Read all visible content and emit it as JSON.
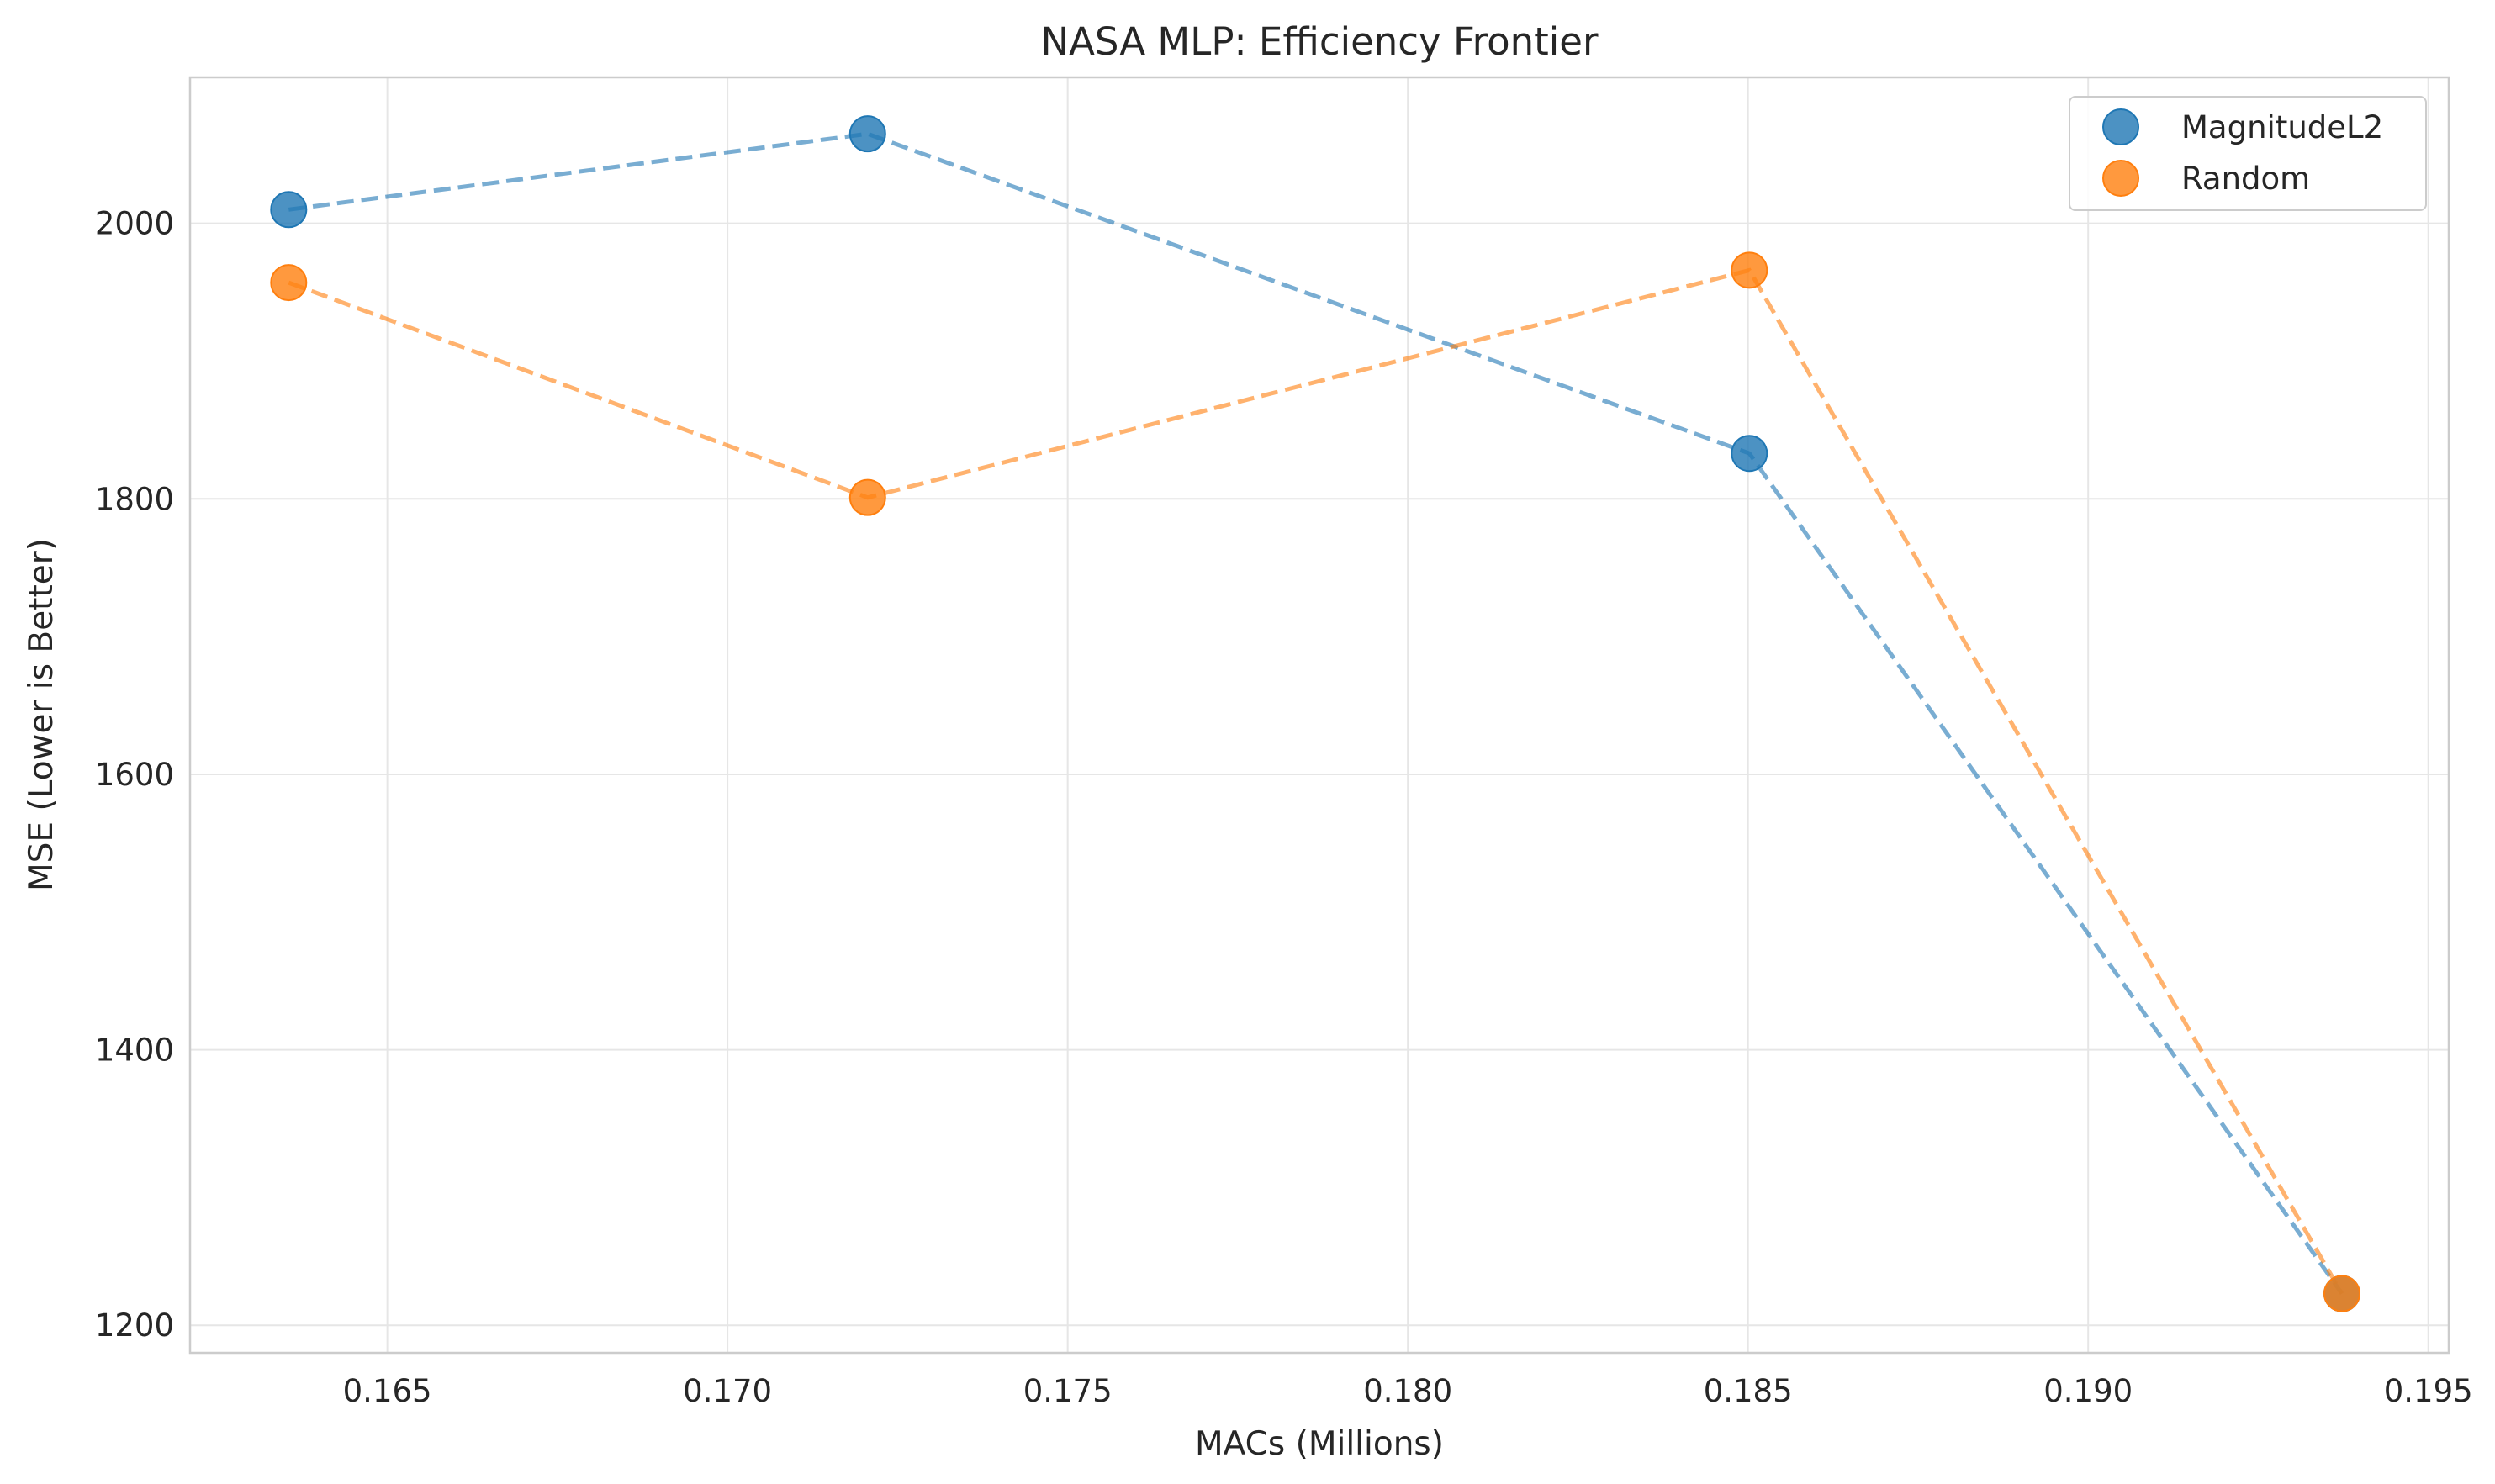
{
  "chart_data": {
    "type": "scatter",
    "title": "NASA MLP: Efficiency Frontier",
    "xlabel": "MACs (Millions)",
    "ylabel": "MSE (Lower is Better)",
    "xlim": [
      0.1621,
      0.1953
    ],
    "ylim": [
      1180,
      2106
    ],
    "x_ticks": [
      0.165,
      0.17,
      0.175,
      0.18,
      0.185,
      0.19,
      0.195
    ],
    "x_tick_labels": [
      "0.165",
      "0.170",
      "0.175",
      "0.180",
      "0.185",
      "0.190",
      "0.195"
    ],
    "y_ticks": [
      1200,
      1400,
      1600,
      1800,
      2000
    ],
    "y_tick_labels": [
      "1200",
      "1400",
      "1600",
      "1800",
      "2000"
    ],
    "grid": true,
    "legend_position": "top-right",
    "series": [
      {
        "name": "MagnitudeL2",
        "color": "#1f77b4",
        "line_style": "dashed",
        "x": [
          0.16355,
          0.17206,
          0.18502,
          0.19373
        ],
        "y": [
          2010,
          2065,
          1833,
          1223
        ]
      },
      {
        "name": "Random",
        "color": "#ff7f0e",
        "line_style": "dashed",
        "x": [
          0.16355,
          0.17206,
          0.18502,
          0.19373
        ],
        "y": [
          1957,
          1801,
          1966,
          1223
        ]
      }
    ]
  }
}
